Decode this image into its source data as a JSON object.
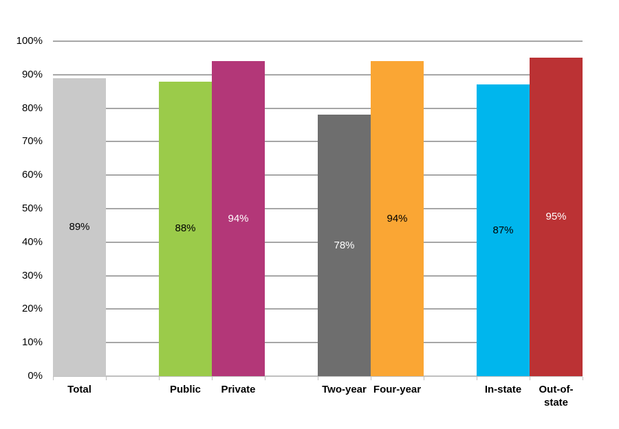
{
  "chart_data": {
    "type": "bar",
    "title": "",
    "xlabel": "",
    "ylabel": "",
    "categories": [
      "Total",
      "Public",
      "Private",
      "Two-year",
      "Four-year",
      "In-state",
      "Out-of-state"
    ],
    "values": [
      89,
      88,
      94,
      78,
      94,
      87,
      95
    ],
    "data_labels": [
      "89%",
      "88%",
      "94%",
      "78%",
      "94%",
      "87%",
      "95%"
    ],
    "bar_colors": [
      "#c9c9c9",
      "#9bcb4a",
      "#b33778",
      "#6e6e6e",
      "#faa634",
      "#00b6ed",
      "#bb3234"
    ],
    "data_label_colors": [
      "#000000",
      "#000000",
      "#ffffff",
      "#ffffff",
      "#000000",
      "#000000",
      "#ffffff"
    ],
    "groups": [
      [
        "Total"
      ],
      [
        "Public",
        "Private"
      ],
      [
        "Two-year",
        "Four-year"
      ],
      [
        "In-state",
        "Out-of-state"
      ]
    ],
    "slot_index": [
      0,
      2,
      3,
      5,
      6,
      8,
      9
    ],
    "total_slots": 10,
    "y_ticks": [
      "0%",
      "10%",
      "20%",
      "30%",
      "40%",
      "50%",
      "60%",
      "70%",
      "80%",
      "90%",
      "100%"
    ],
    "ylim": [
      0,
      100
    ],
    "grid": "horizontal",
    "legend": "none",
    "gridline_color": "#a6a6a6",
    "axis_color": "#bfbfbf"
  }
}
